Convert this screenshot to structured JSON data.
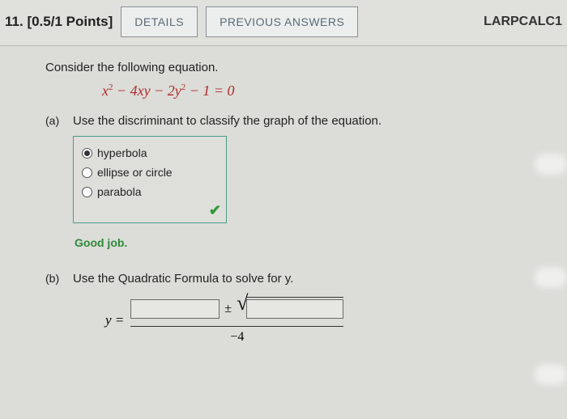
{
  "header": {
    "question_number": "11.",
    "points": "[0.5/1 Points]",
    "details_btn": "DETAILS",
    "previous_btn": "PREVIOUS ANSWERS",
    "course": "LARPCALC1"
  },
  "prompt": "Consider the following equation.",
  "equation_html": "x<sup>2</sup> − 4xy − 2y<sup>2</sup> − 1 = 0",
  "part_a": {
    "label": "(a)",
    "text": "Use the discriminant to classify the graph of the equation.",
    "choices": [
      {
        "label": "hyperbola",
        "selected": true
      },
      {
        "label": "ellipse or circle",
        "selected": false
      },
      {
        "label": "parabola",
        "selected": false
      }
    ],
    "checkmark": "✔",
    "feedback": "Good job."
  },
  "part_b": {
    "label": "(b)",
    "text": "Use the Quadratic Formula to solve for y.",
    "y_equals": "y =",
    "plus_minus": "±",
    "sqrt_symbol": "√",
    "denom": "−4"
  },
  "colors": {
    "equation": "#b02a2a",
    "box_border": "#4a9a8a",
    "feedback": "#2e8a3a",
    "button_text": "#5a6a74"
  }
}
